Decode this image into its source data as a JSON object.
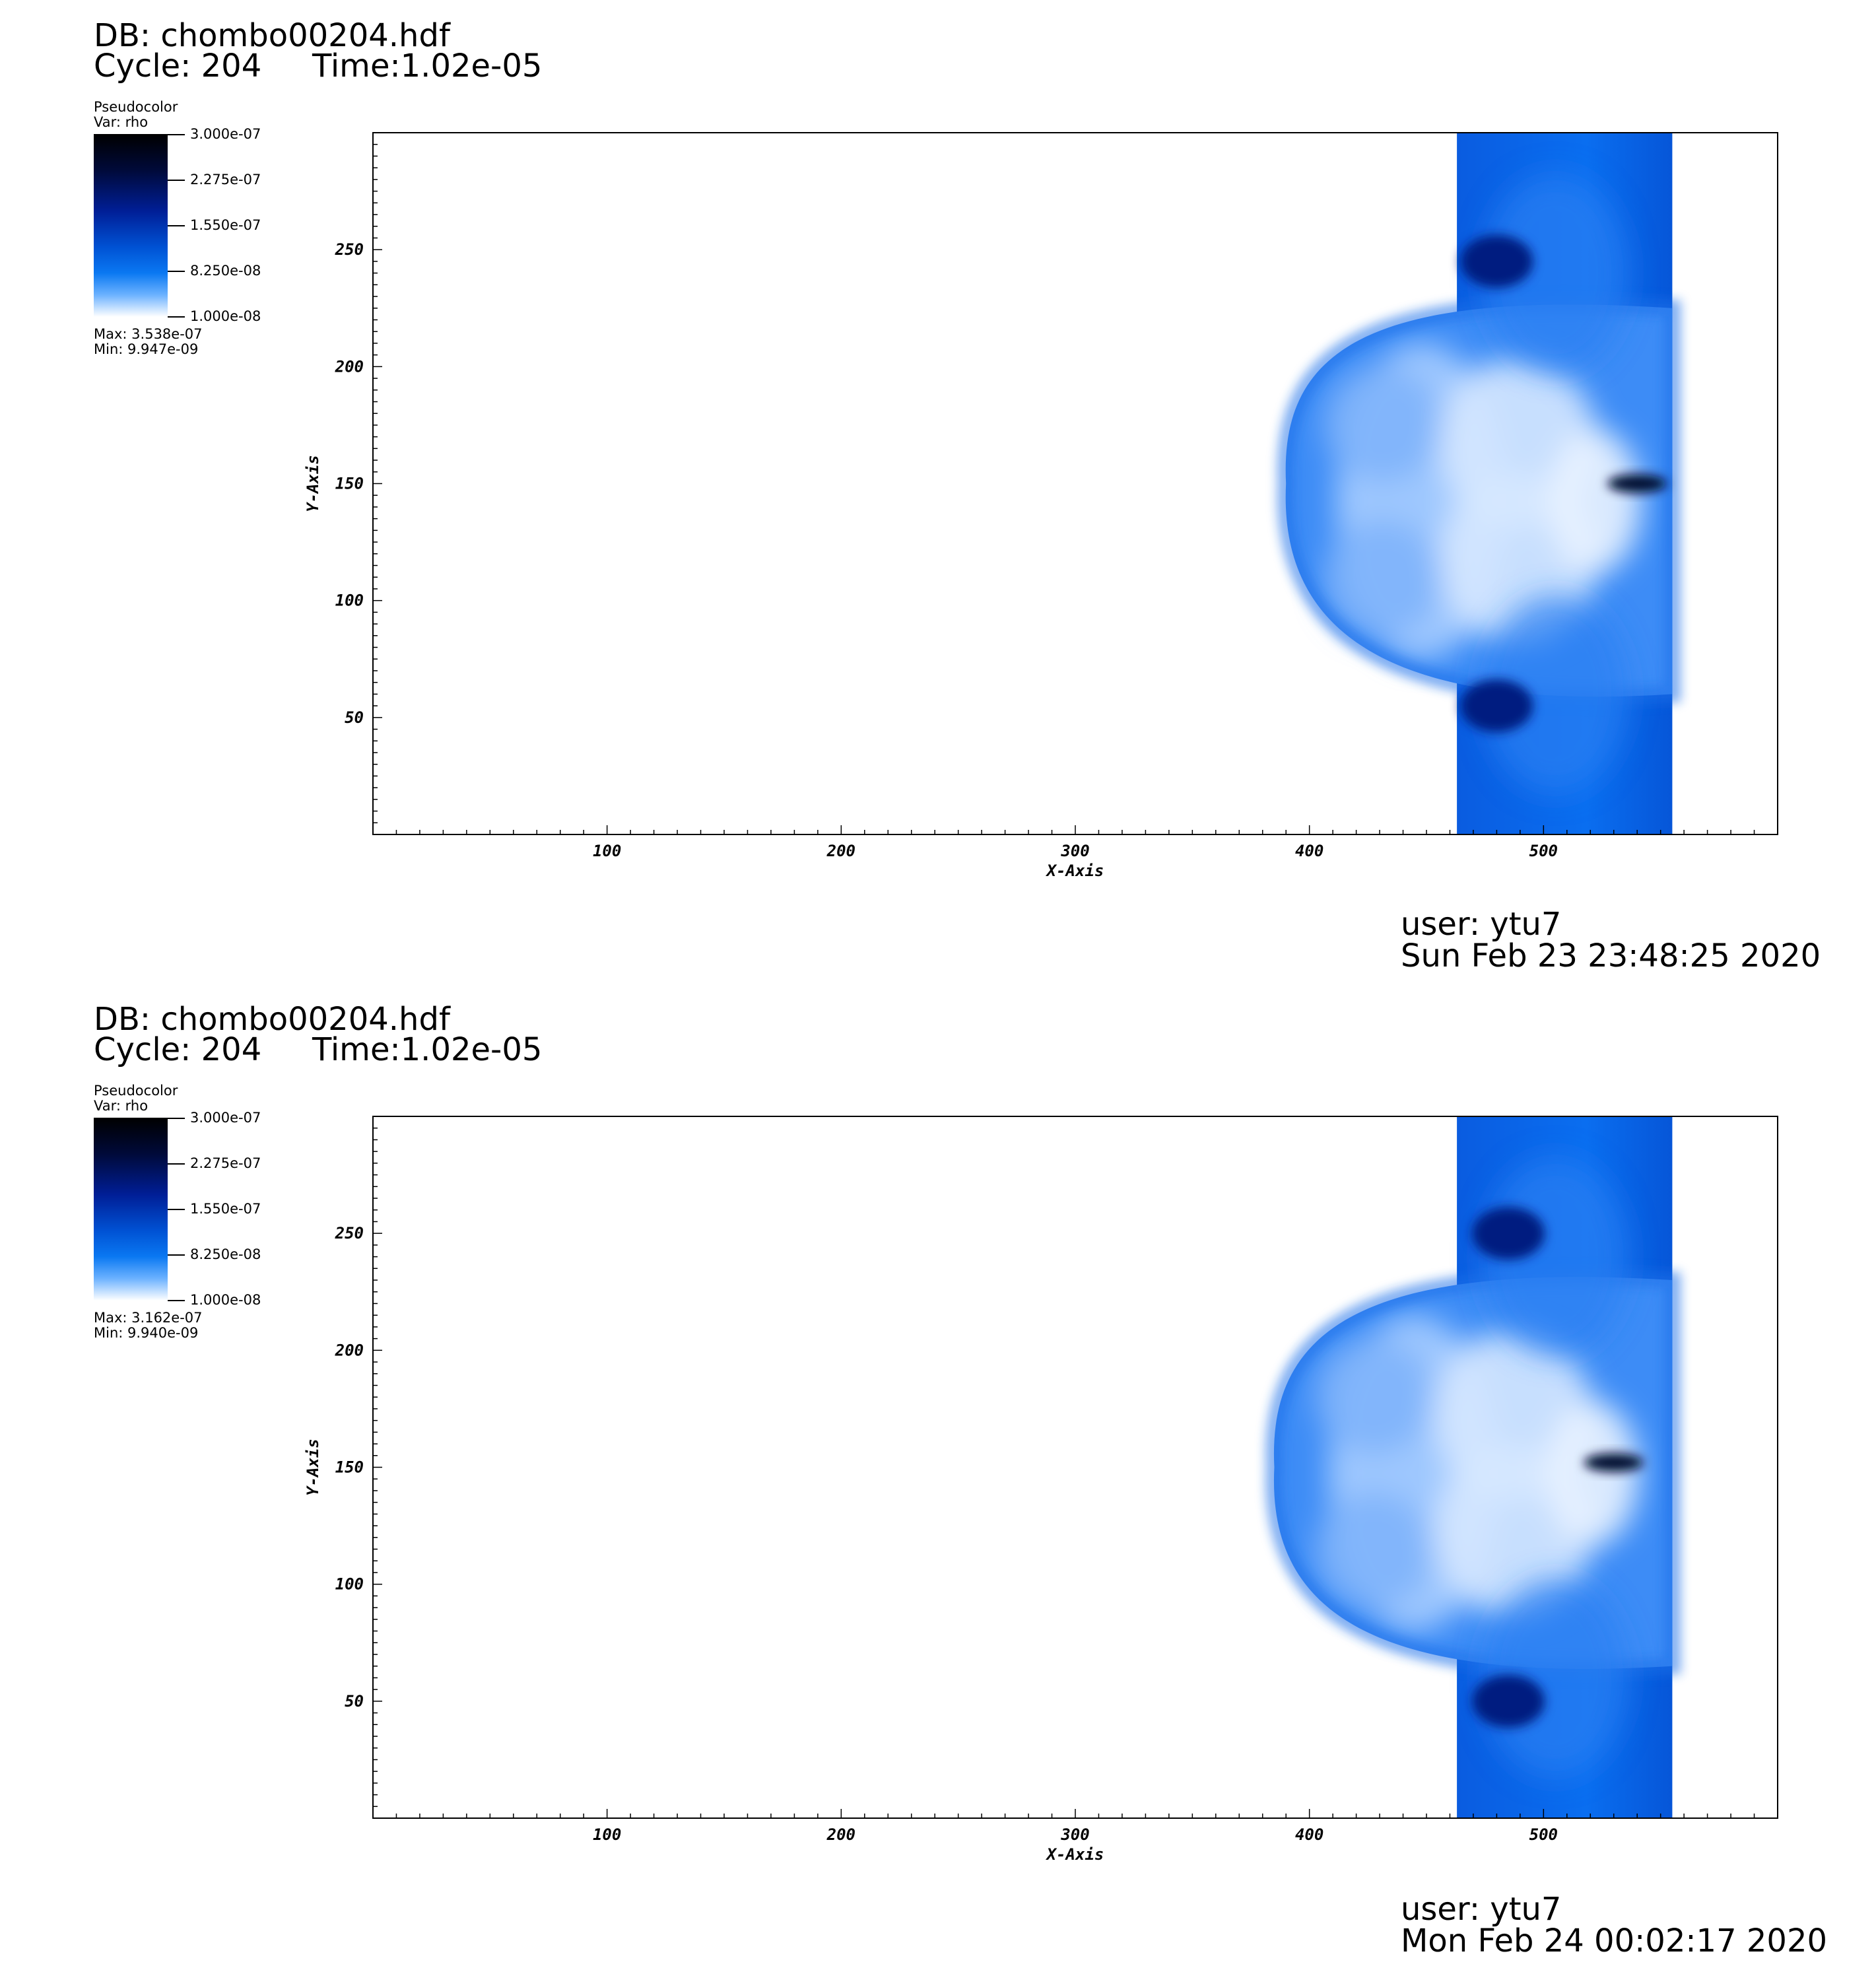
{
  "colors": {
    "colormap": [
      "#ffffff",
      "#0a78f2",
      "#001e96",
      "#000000"
    ],
    "frame": "#000000",
    "background": "#ffffff"
  },
  "panels": [
    {
      "db": "DB: chombo00204.hdf",
      "cycle": "Cycle: 204",
      "time": "Time:1.02e-05",
      "legend": {
        "title": "Pseudocolor",
        "var": "Var: rho",
        "ticks": [
          "3.000e-07",
          "2.275e-07",
          "1.550e-07",
          "8.250e-08",
          "1.000e-08"
        ],
        "max": "Max:  3.538e-07",
        "min": "Min:  9.947e-09"
      },
      "user": "user: ytu7",
      "date": "Sun Feb 23 23:48:25 2020"
    },
    {
      "db": "DB: chombo00204.hdf",
      "cycle": "Cycle: 204",
      "time": "Time:1.02e-05",
      "legend": {
        "title": "Pseudocolor",
        "var": "Var: rho",
        "ticks": [
          "3.000e-07",
          "2.275e-07",
          "1.550e-07",
          "8.250e-08",
          "1.000e-08"
        ],
        "max": "Max:  3.162e-07",
        "min": "Min:  9.940e-09"
      },
      "user": "user: ytu7",
      "date": "Mon Feb 24 00:02:17 2020"
    }
  ],
  "chart_data": [
    {
      "type": "heatmap",
      "variable": "rho",
      "xlabel": "X-Axis",
      "ylabel": "Y-Axis",
      "xlim": [
        0,
        600
      ],
      "ylim": [
        0,
        300
      ],
      "xticks": [
        "100",
        "200",
        "300",
        "400",
        "500"
      ],
      "yticks": [
        "50",
        "100",
        "150",
        "200",
        "250"
      ],
      "color_range": [
        1e-08,
        3e-07
      ],
      "data_max": 3.538e-07,
      "data_min": 9.947e-09,
      "slab": {
        "x": [
          463,
          555
        ],
        "y": [
          0,
          300
        ]
      },
      "bubble": {
        "x_left": 390,
        "x_right": 555,
        "y_bottom": 60,
        "y_top": 225,
        "center_y": 150
      },
      "dense_features": [
        {
          "x": 480,
          "y": 245,
          "level": "high"
        },
        {
          "x": 480,
          "y": 55,
          "level": "high"
        },
        {
          "x": 540,
          "y": 150,
          "level": "max"
        }
      ]
    },
    {
      "type": "heatmap",
      "variable": "rho",
      "xlabel": "X-Axis",
      "ylabel": "Y-Axis",
      "xlim": [
        0,
        600
      ],
      "ylim": [
        0,
        300
      ],
      "xticks": [
        "100",
        "200",
        "300",
        "400",
        "500"
      ],
      "yticks": [
        "50",
        "100",
        "150",
        "200",
        "250"
      ],
      "color_range": [
        1e-08,
        3e-07
      ],
      "data_max": 3.162e-07,
      "data_min": 9.94e-09,
      "slab": {
        "x": [
          463,
          555
        ],
        "y": [
          0,
          300
        ]
      },
      "bubble": {
        "x_left": 385,
        "x_right": 555,
        "y_bottom": 65,
        "y_top": 230,
        "center_y": 150
      },
      "dense_features": [
        {
          "x": 485,
          "y": 250,
          "level": "high"
        },
        {
          "x": 485,
          "y": 50,
          "level": "high"
        },
        {
          "x": 530,
          "y": 152,
          "level": "max"
        }
      ]
    }
  ]
}
